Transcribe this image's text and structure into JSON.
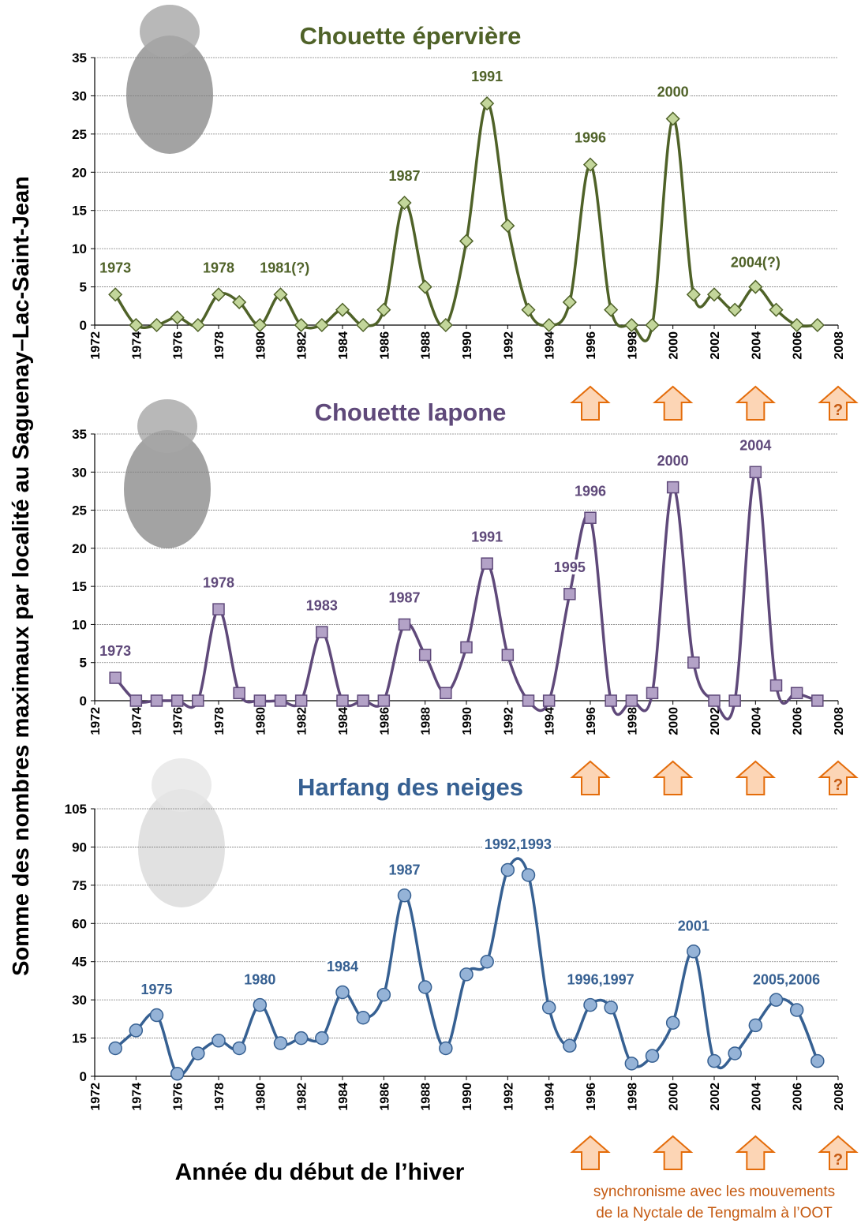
{
  "chart_data": [
    {
      "type": "line",
      "title": "Chouette épervière",
      "color": "#4f6228",
      "marker": "diamond",
      "marker_color": "#c3d69b",
      "x": [
        1973,
        1974,
        1975,
        1976,
        1977,
        1978,
        1979,
        1980,
        1981,
        1982,
        1983,
        1984,
        1985,
        1986,
        1987,
        1988,
        1989,
        1990,
        1991,
        1992,
        1993,
        1994,
        1995,
        1996,
        1997,
        1998,
        1999,
        2000,
        2001,
        2002,
        2003,
        2004,
        2005,
        2006,
        2007
      ],
      "values": [
        4,
        0,
        0,
        1,
        0,
        4,
        3,
        0,
        4,
        0,
        0,
        2,
        0,
        2,
        16,
        5,
        0,
        11,
        29,
        13,
        2,
        0,
        3,
        21,
        2,
        0,
        0,
        27,
        4,
        4,
        2,
        5,
        2,
        0,
        0
      ],
      "xlim": [
        1972,
        2008
      ],
      "xticks": [
        1972,
        1974,
        1976,
        1978,
        1980,
        1982,
        1984,
        1986,
        1988,
        1990,
        1992,
        1994,
        1996,
        1998,
        2000,
        2002,
        2004,
        2006,
        2008
      ],
      "ylim": [
        0,
        35
      ],
      "yticks": [
        0,
        5,
        10,
        15,
        20,
        25,
        30,
        35
      ],
      "grid": true,
      "annotations": [
        "1973",
        "1978",
        "1981(?)",
        "1987",
        "1991",
        "1996",
        "2000",
        "2004(?)"
      ]
    },
    {
      "type": "line",
      "title": "Chouette lapone",
      "color": "#5f497a",
      "marker": "square",
      "marker_color": "#b3a2c7",
      "x": [
        1973,
        1974,
        1975,
        1976,
        1977,
        1978,
        1979,
        1980,
        1981,
        1982,
        1983,
        1984,
        1985,
        1986,
        1987,
        1988,
        1989,
        1990,
        1991,
        1992,
        1993,
        1994,
        1995,
        1996,
        1997,
        1998,
        1999,
        2000,
        2001,
        2002,
        2003,
        2004,
        2005,
        2006,
        2007
      ],
      "values": [
        3,
        0,
        0,
        0,
        0,
        12,
        1,
        0,
        0,
        0,
        9,
        0,
        0,
        0,
        10,
        6,
        1,
        7,
        18,
        6,
        0,
        0,
        14,
        24,
        0,
        0,
        1,
        28,
        5,
        0,
        0,
        30,
        2,
        1,
        0
      ],
      "xlim": [
        1972,
        2008
      ],
      "xticks": [
        1972,
        1974,
        1976,
        1978,
        1980,
        1982,
        1984,
        1986,
        1988,
        1990,
        1992,
        1994,
        1996,
        1998,
        2000,
        2002,
        2004,
        2006,
        2008
      ],
      "ylim": [
        0,
        35
      ],
      "yticks": [
        0,
        5,
        10,
        15,
        20,
        25,
        30,
        35
      ],
      "grid": true,
      "annotations": [
        "1973",
        "1978",
        "1983",
        "1987",
        "1991",
        "1995",
        "1996",
        "2000",
        "2004"
      ]
    },
    {
      "type": "line",
      "title": "Harfang des neiges",
      "color": "#366092",
      "marker": "circle",
      "marker_color": "#95b3d7",
      "x": [
        1973,
        1974,
        1975,
        1976,
        1977,
        1978,
        1979,
        1980,
        1981,
        1982,
        1983,
        1984,
        1985,
        1986,
        1987,
        1988,
        1989,
        1990,
        1991,
        1992,
        1993,
        1994,
        1995,
        1996,
        1997,
        1998,
        1999,
        2000,
        2001,
        2002,
        2003,
        2004,
        2005,
        2006,
        2007
      ],
      "values": [
        11,
        18,
        24,
        1,
        9,
        14,
        11,
        28,
        13,
        15,
        15,
        33,
        23,
        32,
        71,
        35,
        11,
        40,
        45,
        81,
        79,
        27,
        12,
        28,
        27,
        5,
        8,
        21,
        49,
        6,
        9,
        20,
        30,
        26,
        6
      ],
      "xlim": [
        1972,
        2008
      ],
      "xticks": [
        1972,
        1974,
        1976,
        1978,
        1980,
        1982,
        1984,
        1986,
        1988,
        1990,
        1992,
        1994,
        1996,
        1998,
        2000,
        2002,
        2004,
        2006,
        2008
      ],
      "ylim": [
        0,
        105
      ],
      "yticks": [
        0,
        15,
        30,
        45,
        60,
        75,
        90,
        105
      ],
      "grid": true,
      "annotations": [
        "1975",
        "1980",
        "1984",
        "1987",
        "1992,1993",
        "1996,1997",
        "2001",
        "2005,2006"
      ]
    }
  ],
  "y_label": "Somme des nombres maximaux par localité au Saguenay–Lac-Saint-Jean",
  "x_label": "Année du début de l’hiver",
  "arrow_label": "?",
  "note": [
    "synchronisme avec les mouvements",
    "de la Nyctale de Tengmalm à l’OOT"
  ]
}
